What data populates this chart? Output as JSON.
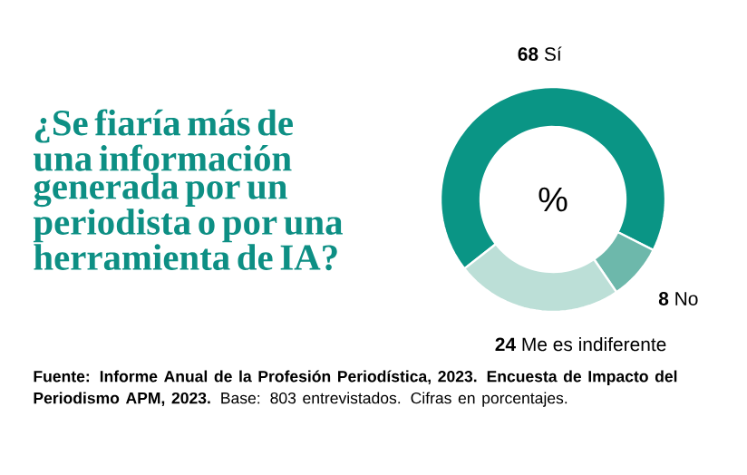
{
  "chart_data": {
    "type": "donut",
    "title": "¿Se fiaría más de una información generada por un periodista o por una herramienta de IA?",
    "categories": [
      "Sí",
      "No",
      "Me es indiferente"
    ],
    "values": [
      68,
      8,
      24
    ],
    "colors": [
      "#0a9585",
      "#6db8ab",
      "#bcdfd7"
    ],
    "data_labels": true,
    "annotations": [
      "%",
      "**Fuente: Informe Anual de la Profesión Periodística, 2023. Encuesta de Impacto del Periodismo APM, 2023.** Base: 803 entrevistados. Cifras en porcentajes."
    ]
  }
}
